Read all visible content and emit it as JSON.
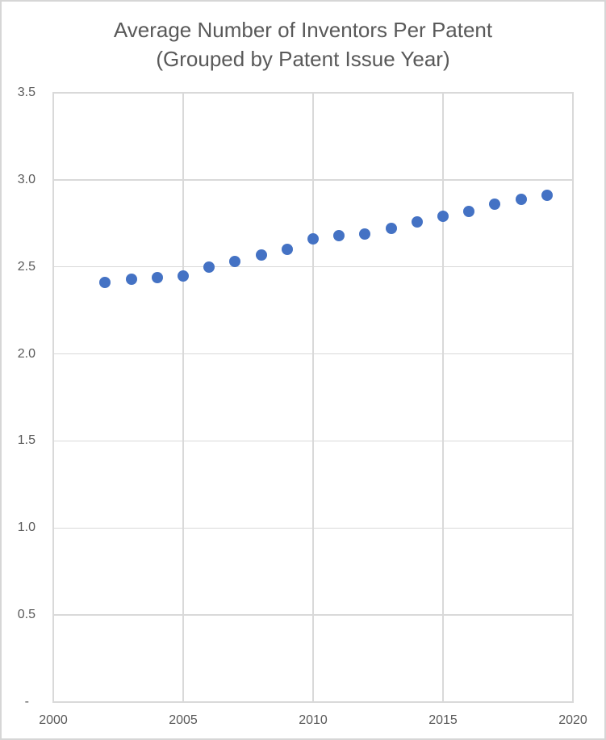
{
  "chart_data": {
    "type": "scatter",
    "title": "Average Number of Inventors Per Patent",
    "subtitle": "(Grouped by Patent Issue Year)",
    "x": [
      2002,
      2003,
      2004,
      2005,
      2006,
      2007,
      2008,
      2009,
      2010,
      2011,
      2012,
      2013,
      2014,
      2015,
      2016,
      2017,
      2018,
      2019
    ],
    "values": [
      2.41,
      2.43,
      2.44,
      2.45,
      2.5,
      2.53,
      2.57,
      2.6,
      2.66,
      2.68,
      2.69,
      2.72,
      2.76,
      2.79,
      2.82,
      2.86,
      2.89,
      2.91
    ],
    "xlim": [
      2000,
      2020
    ],
    "ylim": [
      0,
      3.5
    ],
    "x_ticks": [
      {
        "v": 2000,
        "label": "2000"
      },
      {
        "v": 2005,
        "label": "2005"
      },
      {
        "v": 2010,
        "label": "2010"
      },
      {
        "v": 2015,
        "label": "2015"
      },
      {
        "v": 2020,
        "label": "2020"
      }
    ],
    "y_ticks": [
      {
        "v": 3.5,
        "label": "3.5"
      },
      {
        "v": 3.0,
        "label": "3.0"
      },
      {
        "v": 2.5,
        "label": "2.5"
      },
      {
        "v": 2.0,
        "label": "2.0"
      },
      {
        "v": 1.5,
        "label": "1.5"
      },
      {
        "v": 1.0,
        "label": "1.0"
      },
      {
        "v": 0.5,
        "label": "0.5"
      },
      {
        "v": 0,
        "label": "-"
      }
    ],
    "grid": true,
    "legend": false,
    "marker_color": "#4472C4",
    "text_color": "#595959",
    "gridline_color": "#D9D9D9"
  }
}
